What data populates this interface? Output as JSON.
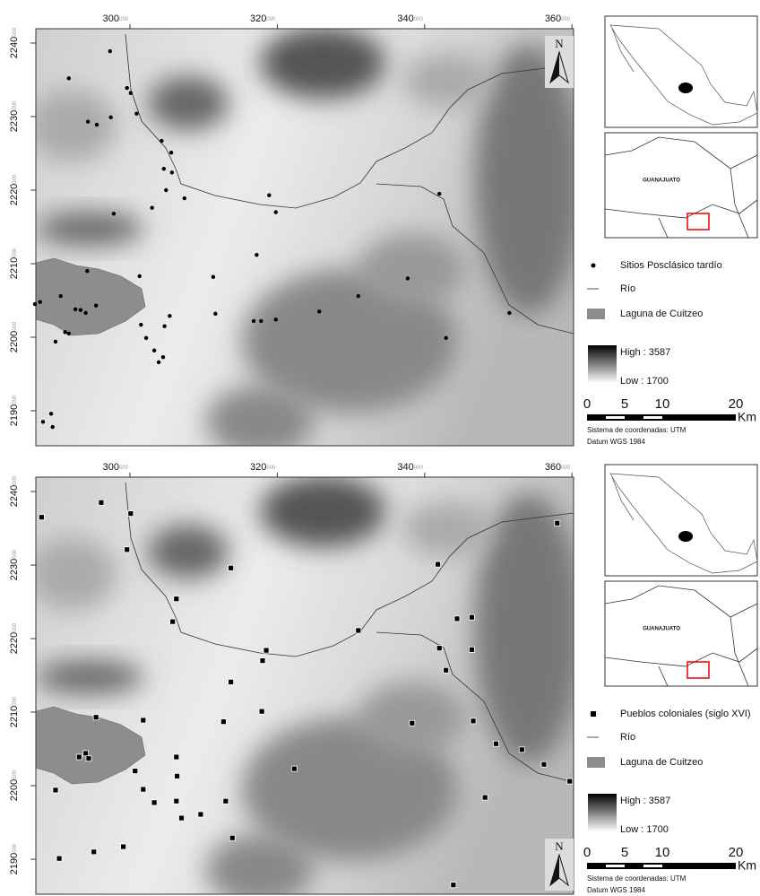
{
  "maps": [
    {
      "x_ticks": [
        {
          "value": 300,
          "label": "300",
          "sup": "000"
        },
        {
          "value": 320,
          "label": "320",
          "sup": "000"
        },
        {
          "value": 340,
          "label": "340",
          "sup": "000"
        },
        {
          "value": 360,
          "label": "360",
          "sup": "000"
        }
      ],
      "y_ticks": [
        {
          "value": 2240,
          "label": "2240",
          "sup": "000"
        },
        {
          "value": 2230,
          "label": "2230",
          "sup": "000"
        },
        {
          "value": 2220,
          "label": "2220",
          "sup": "000"
        },
        {
          "value": 2210,
          "label": "2210",
          "sup": "000"
        },
        {
          "value": 2200,
          "label": "2200",
          "sup": "000"
        },
        {
          "value": 2190,
          "label": "2190",
          "sup": "000"
        }
      ],
      "north": "N",
      "inset_label": "GUANAJUATO",
      "legend": {
        "points": "Sitios Posclásico tardío",
        "river": "Río",
        "lake": "Laguna de Cuitzeo",
        "high": "High : 3587",
        "low": "Low : 1700"
      },
      "scale": {
        "labels": [
          "0",
          "5",
          "10",
          "20"
        ],
        "unit": "Km"
      },
      "crs": "Sistema de coordenadas: UTM",
      "datum": "Datum WGS 1984",
      "sites": {
        "x": [
          297.3,
          291.7,
          299.6,
          300.1,
          300.9,
          294.3,
          295.5,
          297.4,
          304.3,
          305.6,
          304.6,
          305.7,
          304.9,
          303.0,
          307.4,
          297.8,
          318.9,
          319.8,
          317.2,
          311.3,
          301.3,
          294.2,
          290.6,
          295.4,
          293.3,
          294.0,
          292.6,
          287.1,
          287.8,
          311.6,
          305.4,
          301.5,
          304.7,
          302.2,
          291.2,
          291.7,
          289.9,
          303.3,
          304.5,
          303.9,
          319.8,
          316.8,
          317.8,
          325.7,
          331.0,
          337.7,
          342.0,
          351.5,
          342.9,
          288.2,
          289.3,
          289.5
        ],
        "y": [
          2238.9,
          2235.2,
          2233.9,
          2233.2,
          2230.4,
          2229.3,
          2228.9,
          2229.9,
          2226.7,
          2225.1,
          2222.9,
          2222.4,
          2220.0,
          2217.6,
          2218.9,
          2216.8,
          2219.3,
          2217.0,
          2211.2,
          2208.2,
          2208.3,
          2209.0,
          2205.6,
          2204.3,
          2203.7,
          2203.3,
          2203.8,
          2204.5,
          2204.8,
          2203.2,
          2202.9,
          2201.7,
          2201.5,
          2199.9,
          2200.7,
          2200.5,
          2199.4,
          2198.2,
          2197.3,
          2196.6,
          2202.4,
          2202.2,
          2202.2,
          2203.5,
          2205.6,
          2208.0,
          2219.5,
          2203.3,
          2199.9,
          2188.5,
          2189.6,
          2187.8
        ]
      }
    },
    {
      "x_ticks": [
        {
          "value": 300,
          "label": "300",
          "sup": "000"
        },
        {
          "value": 320,
          "label": "320",
          "sup": "000"
        },
        {
          "value": 340,
          "label": "340",
          "sup": "000"
        },
        {
          "value": 360,
          "label": "360",
          "sup": "000"
        }
      ],
      "y_ticks": [
        {
          "value": 2240,
          "label": "2240",
          "sup": "000"
        },
        {
          "value": 2230,
          "label": "2230",
          "sup": "000"
        },
        {
          "value": 2220,
          "label": "2220",
          "sup": "000"
        },
        {
          "value": 2210,
          "label": "2210",
          "sup": "000"
        },
        {
          "value": 2200,
          "label": "2200",
          "sup": "000"
        },
        {
          "value": 2190,
          "label": "2190",
          "sup": "000"
        }
      ],
      "north": "N",
      "inset_label": "GUANAJUATO",
      "legend": {
        "points": "Pueblos coloniales (siglo XVI)",
        "river": "Río",
        "lake": "Laguna de Cuitzeo",
        "high": "High : 3587",
        "low": "Low : 1700"
      },
      "scale": {
        "labels": [
          "0",
          "5",
          "10",
          "20"
        ],
        "unit": "Km"
      },
      "crs": "Sistema de coordenadas: UTM",
      "datum": "Datum WGS 1984",
      "sites": {
        "x": [
          288.0,
          296.1,
          300.1,
          299.6,
          313.7,
          341.8,
          358.0,
          306.3,
          305.8,
          344.4,
          346.4,
          331.0,
          318.5,
          318.0,
          342.0,
          346.4,
          313.7,
          342.9,
          295.4,
          301.8,
          312.7,
          317.9,
          338.3,
          346.6,
          349.7,
          353.2,
          356.2,
          359.7,
          294.0,
          293.1,
          294.4,
          306.3,
          300.7,
          322.3,
          289.9,
          301.8,
          306.4,
          306.3,
          303.3,
          307.0,
          309.6,
          313.0,
          313.9,
          299.1,
          295.1,
          290.4,
          348.2,
          343.9
        ],
        "y": [
          2236.5,
          2238.5,
          2237.0,
          2232.1,
          2229.6,
          2230.1,
          2235.7,
          2225.4,
          2222.3,
          2222.7,
          2222.9,
          2221.1,
          2218.4,
          2217.0,
          2218.7,
          2218.5,
          2214.1,
          2215.7,
          2209.3,
          2208.9,
          2208.7,
          2210.1,
          2208.5,
          2208.8,
          2205.7,
          2204.9,
          2202.9,
          2200.6,
          2204.4,
          2203.9,
          2203.7,
          2203.9,
          2202.0,
          2202.3,
          2199.4,
          2199.5,
          2201.3,
          2197.9,
          2197.7,
          2195.6,
          2196.1,
          2197.9,
          2192.9,
          2191.7,
          2191.0,
          2190.1,
          2198.4,
          2186.5
        ]
      }
    }
  ]
}
